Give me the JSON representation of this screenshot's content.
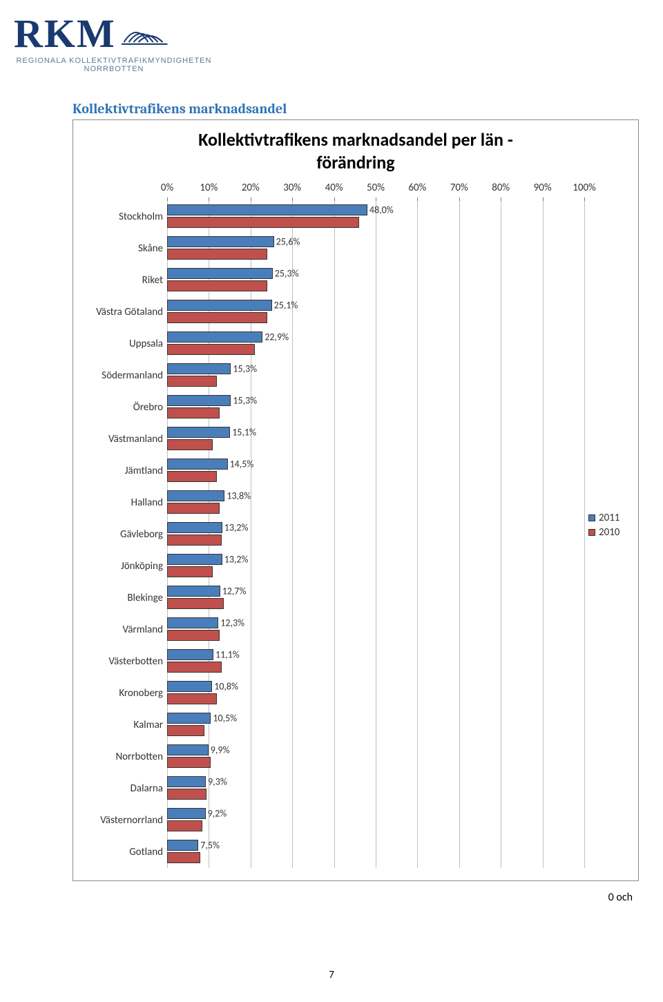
{
  "logo": {
    "main_text": "RKM",
    "sub1": "REGIONALA KOLLEKTIVTRAFIKMYNDIGHETEN",
    "sub2": "NORRBOTTEN",
    "text_color": "#1a3a6e",
    "sub_color": "#5a7a9a"
  },
  "section_title": "Kollektivtrafikens marknadsandel",
  "chart": {
    "type": "horizontal_grouped_bar",
    "title_line1": "Kollektivtrafikens marknadsandel per län -",
    "title_line2": "förändring",
    "title_fontsize": 26,
    "label_fontsize": 15,
    "datalabel_fontsize": 14,
    "background_color": "#ffffff",
    "grid_color": "#bfbfbf",
    "border_color": "#333333",
    "xmin": 0,
    "xmax": 100,
    "xtick_step": 10,
    "xtick_labels": [
      "0%",
      "10%",
      "20%",
      "30%",
      "40%",
      "50%",
      "60%",
      "70%",
      "80%",
      "90%",
      "100%"
    ],
    "series": [
      {
        "name": "2011",
        "color": "#4a7ebb"
      },
      {
        "name": "2010",
        "color": "#c0504d"
      }
    ],
    "categories": [
      {
        "label": "Stockholm",
        "v2011": 48.0,
        "v2010": 46.0,
        "text": "48,0%"
      },
      {
        "label": "Skåne",
        "v2011": 25.6,
        "v2010": 24.0,
        "text": "25,6%"
      },
      {
        "label": "Riket",
        "v2011": 25.3,
        "v2010": 24.0,
        "text": "25,3%"
      },
      {
        "label": "Västra Götaland",
        "v2011": 25.1,
        "v2010": 24.0,
        "text": "25,1%"
      },
      {
        "label": "Uppsala",
        "v2011": 22.9,
        "v2010": 21.0,
        "text": "22,9%"
      },
      {
        "label": "Södermanland",
        "v2011": 15.3,
        "v2010": 12.0,
        "text": "15,3%"
      },
      {
        "label": "Örebro",
        "v2011": 15.3,
        "v2010": 12.5,
        "text": "15,3%"
      },
      {
        "label": "Västmanland",
        "v2011": 15.1,
        "v2010": 11.0,
        "text": "15,1%"
      },
      {
        "label": "Jämtland",
        "v2011": 14.5,
        "v2010": 12.0,
        "text": "14,5%"
      },
      {
        "label": "Halland",
        "v2011": 13.8,
        "v2010": 12.5,
        "text": "13,8%"
      },
      {
        "label": "Gävleborg",
        "v2011": 13.2,
        "v2010": 13.0,
        "text": "13,2%"
      },
      {
        "label": "Jönköping",
        "v2011": 13.2,
        "v2010": 11.0,
        "text": "13,2%"
      },
      {
        "label": "Blekinge",
        "v2011": 12.7,
        "v2010": 13.5,
        "text": "12,7%"
      },
      {
        "label": "Värmland",
        "v2011": 12.3,
        "v2010": 12.5,
        "text": "12,3%"
      },
      {
        "label": "Västerbotten",
        "v2011": 11.1,
        "v2010": 13.0,
        "text": "11,1%"
      },
      {
        "label": "Kronoberg",
        "v2011": 10.8,
        "v2010": 12.0,
        "text": "10,8%"
      },
      {
        "label": "Kalmar",
        "v2011": 10.5,
        "v2010": 9.0,
        "text": "10,5%"
      },
      {
        "label": "Norrbotten",
        "v2011": 9.9,
        "v2010": 10.5,
        "text": "9,9%"
      },
      {
        "label": "Dalarna",
        "v2011": 9.3,
        "v2010": 9.5,
        "text": "9,3%"
      },
      {
        "label": "Västernorrland",
        "v2011": 9.2,
        "v2010": 8.5,
        "text": "9,2%"
      },
      {
        "label": "Gotland",
        "v2011": 7.5,
        "v2010": 8.0,
        "text": "7,5%"
      }
    ]
  },
  "footer_fragment": "0 och",
  "page_number": "7"
}
